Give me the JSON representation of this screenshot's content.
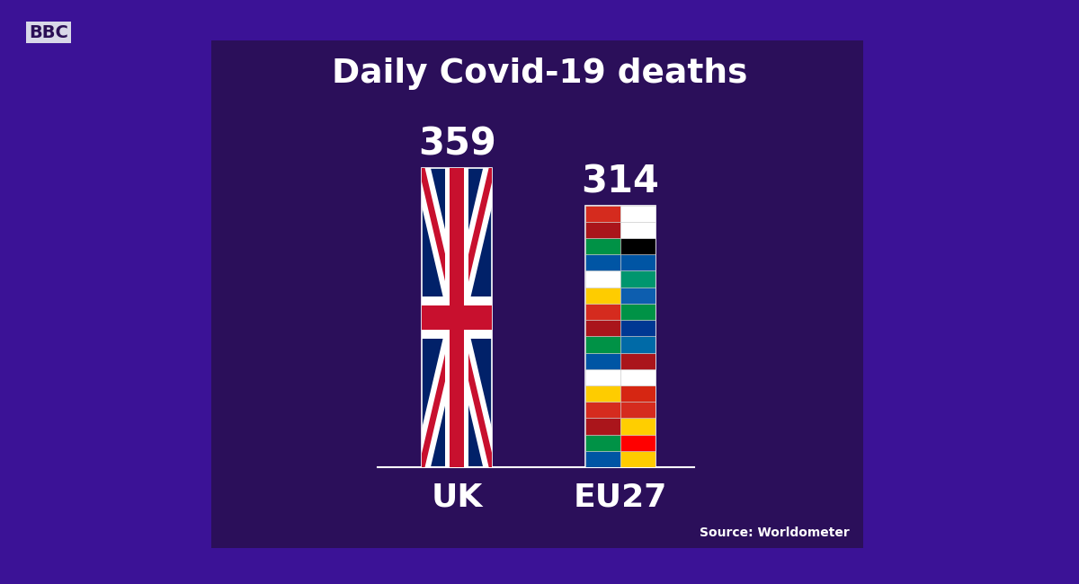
{
  "chart_data": {
    "type": "bar",
    "title": "Daily Covid-19 deaths",
    "categories": [
      "UK",
      "EU27"
    ],
    "values": [
      359,
      314
    ],
    "colors": [
      "#012169",
      "#dcdce6"
    ],
    "ylim": [
      0,
      400
    ],
    "data_labels": true,
    "tick_labels": "x",
    "source": "Source: Worldometer",
    "logo": "BBC"
  }
}
